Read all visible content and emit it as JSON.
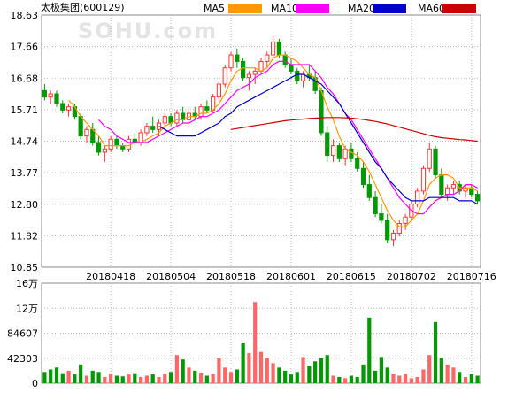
{
  "title": "太极集团(600129)",
  "watermark": "SOHU.com",
  "legend": [
    {
      "label": "MA5",
      "color": "#ff9900"
    },
    {
      "label": "MA10",
      "color": "#ff00ff"
    },
    {
      "label": "MA20",
      "color": "#0000cc"
    },
    {
      "label": "MA60",
      "color": "#cc0000"
    }
  ],
  "colors": {
    "up": "#ff3333",
    "down": "#009900",
    "grid": "#bbbbbb",
    "axis": "#888888"
  },
  "chart_data": [
    {
      "type": "candlestick",
      "title": "太极集团(600129)",
      "ylim": [
        10.85,
        18.63
      ],
      "yticks": [
        "18.63",
        "17.66",
        "16.68",
        "15.71",
        "14.74",
        "13.77",
        "12.80",
        "11.82",
        "10.85"
      ],
      "xtick_labels": [
        "20180418",
        "20180504",
        "20180518",
        "20180601",
        "20180615",
        "20180702",
        "20180716"
      ],
      "xtick_index": [
        11,
        21,
        31,
        41,
        51,
        61,
        71
      ],
      "grid": true,
      "legend_position": "top-right",
      "ohlc": [
        [
          16.3,
          16.5,
          16.0,
          16.1
        ],
        [
          16.1,
          16.3,
          15.9,
          16.2
        ],
        [
          16.2,
          16.3,
          15.8,
          15.9
        ],
        [
          15.9,
          16.0,
          15.6,
          15.7
        ],
        [
          15.7,
          15.9,
          15.5,
          15.8
        ],
        [
          15.8,
          15.9,
          15.4,
          15.5
        ],
        [
          15.5,
          15.6,
          14.8,
          14.9
        ],
        [
          14.9,
          15.2,
          14.7,
          15.1
        ],
        [
          15.1,
          15.3,
          14.6,
          14.7
        ],
        [
          14.7,
          14.9,
          14.3,
          14.4
        ],
        [
          14.4,
          14.6,
          14.1,
          14.5
        ],
        [
          14.5,
          14.9,
          14.4,
          14.8
        ],
        [
          14.8,
          14.9,
          14.5,
          14.6
        ],
        [
          14.6,
          14.7,
          14.4,
          14.5
        ],
        [
          14.5,
          14.9,
          14.4,
          14.8
        ],
        [
          14.8,
          15.0,
          14.6,
          14.7
        ],
        [
          14.7,
          15.1,
          14.6,
          15.0
        ],
        [
          15.0,
          15.3,
          14.9,
          15.2
        ],
        [
          15.2,
          15.5,
          15.0,
          15.1
        ],
        [
          15.1,
          15.4,
          14.9,
          15.3
        ],
        [
          15.3,
          15.6,
          15.1,
          15.5
        ],
        [
          15.5,
          15.6,
          15.2,
          15.3
        ],
        [
          15.3,
          15.7,
          15.2,
          15.6
        ],
        [
          15.6,
          15.8,
          15.3,
          15.4
        ],
        [
          15.4,
          15.7,
          15.2,
          15.6
        ],
        [
          15.6,
          15.8,
          15.4,
          15.5
        ],
        [
          15.5,
          15.9,
          15.4,
          15.8
        ],
        [
          15.8,
          16.0,
          15.6,
          15.7
        ],
        [
          15.7,
          16.2,
          15.6,
          16.1
        ],
        [
          16.1,
          16.6,
          16.0,
          16.5
        ],
        [
          16.5,
          17.1,
          16.4,
          17.0
        ],
        [
          17.0,
          17.5,
          16.9,
          17.4
        ],
        [
          17.4,
          17.6,
          17.0,
          17.2
        ],
        [
          17.2,
          17.3,
          16.6,
          16.7
        ],
        [
          16.7,
          16.9,
          16.3,
          16.8
        ],
        [
          16.8,
          17.0,
          16.5,
          16.9
        ],
        [
          16.9,
          17.3,
          16.8,
          17.2
        ],
        [
          17.2,
          17.5,
          17.0,
          17.4
        ],
        [
          17.4,
          18.0,
          17.3,
          17.8
        ],
        [
          17.8,
          17.9,
          17.3,
          17.4
        ],
        [
          17.4,
          17.5,
          17.0,
          17.1
        ],
        [
          17.1,
          17.3,
          16.8,
          16.9
        ],
        [
          16.9,
          17.0,
          16.5,
          16.6
        ],
        [
          16.6,
          16.9,
          16.4,
          16.8
        ],
        [
          16.8,
          17.1,
          16.6,
          16.7
        ],
        [
          16.7,
          16.9,
          16.2,
          16.3
        ],
        [
          16.3,
          16.4,
          14.9,
          15.0
        ],
        [
          15.0,
          15.2,
          14.1,
          14.3
        ],
        [
          14.3,
          14.8,
          14.1,
          14.6
        ],
        [
          14.6,
          14.7,
          14.1,
          14.2
        ],
        [
          14.2,
          14.6,
          14.0,
          14.5
        ],
        [
          14.5,
          14.7,
          14.1,
          14.2
        ],
        [
          14.2,
          14.4,
          13.8,
          13.9
        ],
        [
          13.9,
          14.1,
          13.3,
          13.4
        ],
        [
          13.4,
          13.7,
          12.9,
          13.0
        ],
        [
          13.0,
          13.2,
          12.4,
          12.5
        ],
        [
          12.5,
          12.8,
          12.2,
          12.3
        ],
        [
          12.3,
          12.5,
          11.6,
          11.7
        ],
        [
          11.7,
          12.0,
          11.5,
          11.9
        ],
        [
          11.9,
          12.3,
          11.8,
          12.2
        ],
        [
          12.2,
          12.5,
          12.0,
          12.4
        ],
        [
          12.4,
          12.9,
          12.3,
          12.8
        ],
        [
          12.8,
          13.3,
          12.7,
          13.2
        ],
        [
          13.2,
          14.0,
          13.1,
          13.9
        ],
        [
          13.9,
          14.7,
          13.8,
          14.5
        ],
        [
          14.5,
          14.6,
          13.6,
          13.7
        ],
        [
          13.7,
          13.9,
          13.0,
          13.1
        ],
        [
          13.1,
          13.4,
          12.9,
          13.3
        ],
        [
          13.3,
          13.5,
          13.1,
          13.4
        ],
        [
          13.4,
          13.5,
          13.1,
          13.2
        ],
        [
          13.2,
          13.4,
          13.0,
          13.3
        ],
        [
          13.3,
          13.4,
          13.0,
          13.1
        ],
        [
          13.1,
          13.2,
          12.8,
          12.9
        ]
      ],
      "ma": {
        "MA5": [
          null,
          null,
          null,
          null,
          16.0,
          15.8,
          15.5,
          15.3,
          15.1,
          14.9,
          14.6,
          14.6,
          14.6,
          14.6,
          14.6,
          14.7,
          14.7,
          14.8,
          14.9,
          15.0,
          15.2,
          15.3,
          15.4,
          15.4,
          15.5,
          15.5,
          15.6,
          15.6,
          15.7,
          15.9,
          16.2,
          16.6,
          16.9,
          17.0,
          17.0,
          17.0,
          16.9,
          17.0,
          17.3,
          17.4,
          17.4,
          17.3,
          17.2,
          17.0,
          16.8,
          16.7,
          16.3,
          15.8,
          15.4,
          14.9,
          14.5,
          14.4,
          14.3,
          14.1,
          13.8,
          13.4,
          13.0,
          12.6,
          12.3,
          12.1,
          12.1,
          12.3,
          12.5,
          12.9,
          13.4,
          13.6,
          13.7,
          13.7,
          13.6,
          13.3,
          13.3,
          13.3,
          13.2
        ],
        "MA10": [
          null,
          null,
          null,
          null,
          null,
          null,
          null,
          null,
          null,
          15.4,
          15.2,
          15.1,
          14.9,
          14.8,
          14.7,
          14.7,
          14.7,
          14.7,
          14.8,
          14.9,
          15.0,
          15.1,
          15.2,
          15.3,
          15.3,
          15.4,
          15.5,
          15.5,
          15.6,
          15.7,
          15.9,
          16.1,
          16.3,
          16.4,
          16.5,
          16.7,
          16.8,
          16.9,
          17.1,
          17.2,
          17.2,
          17.1,
          17.1,
          17.1,
          17.1,
          16.9,
          16.7,
          16.4,
          16.2,
          15.9,
          15.6,
          15.4,
          15.1,
          14.8,
          14.5,
          14.2,
          13.9,
          13.6,
          13.3,
          13.0,
          12.8,
          12.6,
          12.5,
          12.5,
          12.7,
          12.9,
          13.0,
          13.1,
          13.1,
          13.2,
          13.4,
          13.4,
          13.3
        ],
        "MA20": [
          null,
          null,
          null,
          null,
          null,
          null,
          null,
          null,
          null,
          null,
          null,
          null,
          null,
          null,
          null,
          null,
          null,
          null,
          null,
          15.2,
          15.1,
          15.0,
          14.9,
          14.9,
          14.9,
          14.9,
          15.0,
          15.1,
          15.2,
          15.3,
          15.5,
          15.6,
          15.8,
          15.9,
          16.0,
          16.1,
          16.2,
          16.3,
          16.4,
          16.5,
          16.6,
          16.7,
          16.8,
          16.8,
          16.7,
          16.6,
          16.5,
          16.3,
          16.1,
          15.9,
          15.6,
          15.3,
          15.0,
          14.7,
          14.4,
          14.1,
          13.9,
          13.6,
          13.4,
          13.2,
          13.0,
          12.9,
          12.9,
          12.9,
          13.0,
          13.0,
          13.0,
          13.0,
          13.0,
          12.9,
          12.9,
          12.9,
          12.8
        ],
        "MA60": [
          null,
          null,
          null,
          null,
          null,
          null,
          null,
          null,
          null,
          null,
          null,
          null,
          null,
          null,
          null,
          null,
          null,
          null,
          null,
          null,
          null,
          null,
          null,
          null,
          null,
          null,
          null,
          null,
          null,
          null,
          null,
          15.1,
          15.13,
          15.16,
          15.19,
          15.22,
          15.25,
          15.28,
          15.31,
          15.34,
          15.37,
          15.39,
          15.41,
          15.42,
          15.44,
          15.45,
          15.46,
          15.47,
          15.47,
          15.47,
          15.46,
          15.45,
          15.43,
          15.41,
          15.38,
          15.35,
          15.31,
          15.27,
          15.22,
          15.17,
          15.12,
          15.07,
          15.02,
          14.97,
          14.92,
          14.88,
          14.85,
          14.83,
          14.81,
          14.79,
          14.78,
          14.76,
          14.74
        ]
      }
    },
    {
      "type": "bar",
      "title": "",
      "ylim": [
        0,
        160000
      ],
      "yticks": [
        "16万",
        "12万",
        "84607",
        "42303",
        "0"
      ],
      "values": [
        18000,
        22000,
        25000,
        16000,
        20000,
        14000,
        30000,
        12000,
        20000,
        18000,
        10000,
        15000,
        12000,
        11000,
        14000,
        16000,
        10000,
        12000,
        14000,
        10000,
        15000,
        18000,
        45000,
        38000,
        25000,
        20000,
        17000,
        12000,
        15000,
        40000,
        25000,
        18000,
        22000,
        65000,
        48000,
        130000,
        50000,
        40000,
        32000,
        25000,
        20000,
        14000,
        18000,
        42000,
        28000,
        35000,
        40000,
        45000,
        12000,
        10000,
        8000,
        12000,
        10000,
        30000,
        105000,
        20000,
        42000,
        25000,
        15000,
        12000,
        15000,
        8000,
        10000,
        22000,
        45000,
        98000,
        40000,
        30000,
        25000,
        18000,
        10000,
        15000,
        12000
      ],
      "up": [
        false,
        false,
        false,
        false,
        true,
        false,
        false,
        true,
        false,
        false,
        true,
        true,
        false,
        false,
        true,
        false,
        true,
        true,
        false,
        true,
        true,
        false,
        true,
        false,
        true,
        false,
        true,
        false,
        true,
        true,
        true,
        true,
        false,
        false,
        true,
        true,
        true,
        true,
        true,
        false,
        false,
        false,
        false,
        true,
        false,
        false,
        false,
        false,
        true,
        false,
        true,
        false,
        false,
        false,
        false,
        false,
        false,
        false,
        true,
        true,
        true,
        true,
        true,
        true,
        true,
        false,
        false,
        true,
        true,
        false,
        true,
        false,
        false
      ]
    }
  ]
}
